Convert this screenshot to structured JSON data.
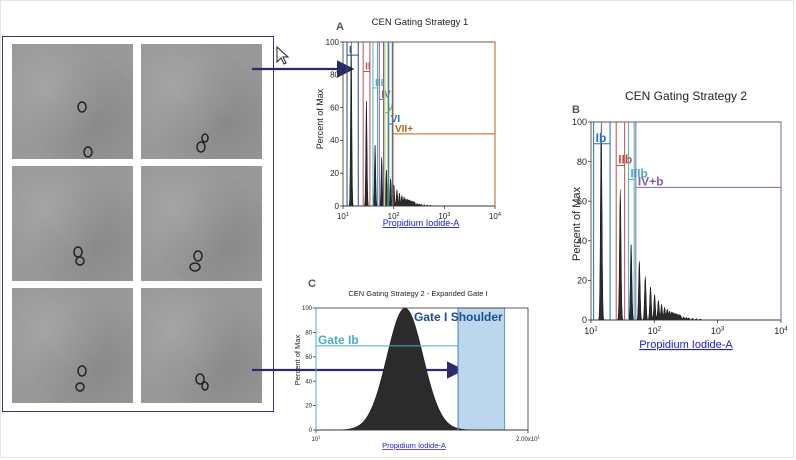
{
  "colors": {
    "gate1": "#1f4e8c",
    "gate2": "#c0504d",
    "gate3": "#4bacc6",
    "gate4": "#8064a2",
    "gate5": "#9bbb59",
    "gate6": "#1f6fbf",
    "gate7": "#b8651b",
    "arrow": "#2b2b6b",
    "link": "#1a1acc",
    "shoulder_fill": "#bcd6ee"
  },
  "chart_data": [
    {
      "id": "A",
      "type": "histogram",
      "panel_label": "A",
      "title": "CEN Gating Strategy 1",
      "xlabel": "Propidium Iodide-A",
      "ylabel": "Percent of Max",
      "xscale": "log",
      "xlim": [
        10,
        10000
      ],
      "ylim": [
        0,
        100
      ],
      "y_ticks": [
        0,
        20,
        40,
        60,
        80,
        100
      ],
      "x_ticks": [
        {
          "value": 10,
          "base": "10",
          "exp": "1"
        },
        {
          "value": 100,
          "base": "10",
          "exp": "2"
        },
        {
          "value": 1000,
          "base": "10",
          "exp": "3"
        },
        {
          "value": 10000,
          "base": "10",
          "exp": "4"
        }
      ],
      "peaks": [
        {
          "x": 14.5,
          "y": 100
        },
        {
          "x": 29,
          "y": 64
        },
        {
          "x": 43,
          "y": 38
        },
        {
          "x": 58,
          "y": 30
        },
        {
          "x": 72,
          "y": 22
        },
        {
          "x": 87,
          "y": 17
        },
        {
          "x": 101,
          "y": 13
        },
        {
          "x": 116,
          "y": 10
        },
        {
          "x": 130,
          "y": 8
        },
        {
          "x": 145,
          "y": 6.5
        },
        {
          "x": 160,
          "y": 5.5
        },
        {
          "x": 174,
          "y": 4.5
        },
        {
          "x": 189,
          "y": 4
        },
        {
          "x": 203,
          "y": 3.5
        },
        {
          "x": 218,
          "y": 3
        },
        {
          "x": 232,
          "y": 2.5
        },
        {
          "x": 247,
          "y": 2.2
        },
        {
          "x": 261,
          "y": 2
        },
        {
          "x": 290,
          "y": 1.6
        },
        {
          "x": 320,
          "y": 1.3
        },
        {
          "x": 350,
          "y": 1.1
        },
        {
          "x": 400,
          "y": 0.9
        },
        {
          "x": 460,
          "y": 0.7
        },
        {
          "x": 530,
          "y": 0.5
        }
      ],
      "peak_width_log": 0.012,
      "gates": [
        {
          "label": "I",
          "x1": 12,
          "x2": 20,
          "y": 92,
          "color_key": "gate1"
        },
        {
          "label": "II",
          "x1": 25,
          "x2": 34,
          "y": 82,
          "color_key": "gate2"
        },
        {
          "label": "III",
          "x1": 39,
          "x2": 48,
          "y": 72,
          "color_key": "gate3"
        },
        {
          "label": "IV",
          "x1": 52,
          "x2": 63,
          "y": 65,
          "color_key": "gate4"
        },
        {
          "label": "V",
          "x1": 67,
          "x2": 77,
          "y": 57,
          "color_key": "gate5"
        },
        {
          "label": "VI",
          "x1": 80,
          "x2": 94,
          "y": 50,
          "color_key": "gate6"
        },
        {
          "label": "VII+",
          "x1": 97,
          "x2": 10000,
          "y": 44,
          "color_key": "gate7"
        }
      ]
    },
    {
      "id": "B",
      "type": "histogram",
      "panel_label": "B",
      "title": "CEN Gating Strategy 2",
      "xlabel": "Propidium Iodide-A",
      "ylabel": "Percent of Max",
      "xscale": "log",
      "xlim": [
        10,
        10000
      ],
      "ylim": [
        0,
        100
      ],
      "y_ticks": [
        0,
        20,
        40,
        60,
        80,
        100
      ],
      "x_ticks": [
        {
          "value": 10,
          "base": "10",
          "exp": "1"
        },
        {
          "value": 100,
          "base": "10",
          "exp": "2"
        },
        {
          "value": 1000,
          "base": "10",
          "exp": "3"
        },
        {
          "value": 10000,
          "base": "10",
          "exp": "4"
        }
      ],
      "peaks": [
        {
          "x": 14.5,
          "y": 100
        },
        {
          "x": 29,
          "y": 66
        },
        {
          "x": 43,
          "y": 39
        },
        {
          "x": 58,
          "y": 30
        },
        {
          "x": 72,
          "y": 22
        },
        {
          "x": 87,
          "y": 17
        },
        {
          "x": 101,
          "y": 13
        },
        {
          "x": 116,
          "y": 10
        },
        {
          "x": 130,
          "y": 8
        },
        {
          "x": 145,
          "y": 6.5
        },
        {
          "x": 160,
          "y": 5.5
        },
        {
          "x": 174,
          "y": 4.5
        },
        {
          "x": 189,
          "y": 4
        },
        {
          "x": 203,
          "y": 3.5
        },
        {
          "x": 218,
          "y": 3
        },
        {
          "x": 232,
          "y": 2.5
        },
        {
          "x": 247,
          "y": 2.2
        },
        {
          "x": 261,
          "y": 2
        },
        {
          "x": 290,
          "y": 1.6
        },
        {
          "x": 320,
          "y": 1.3
        },
        {
          "x": 350,
          "y": 1.1
        },
        {
          "x": 400,
          "y": 0.9
        },
        {
          "x": 460,
          "y": 0.7
        },
        {
          "x": 530,
          "y": 0.5
        }
      ],
      "peak_width_log": 0.012,
      "gates": [
        {
          "label": "Ib",
          "x1": 11,
          "x2": 20,
          "y": 89,
          "color_key": "gate6"
        },
        {
          "label": "IIb",
          "x1": 25,
          "x2": 34,
          "y": 78,
          "color_key": "gate2"
        },
        {
          "label": "IIIb",
          "x1": 39,
          "x2": 48,
          "y": 71,
          "color_key": "gate3"
        },
        {
          "label": "IV+b",
          "x1": 51,
          "x2": 10000,
          "y": 67,
          "color_key": "gate4"
        }
      ]
    },
    {
      "id": "C",
      "type": "histogram",
      "panel_label": "C",
      "title": "CEN Gating Strategy 2 - Expanded Gate I",
      "xlabel": "Propidium Iodide-A",
      "ylabel": "Percent of Max",
      "xscale": "linear",
      "xlim": [
        10,
        20
      ],
      "ylim": [
        0,
        100
      ],
      "y_ticks": [
        0,
        20,
        40,
        60,
        80,
        100
      ],
      "x_ticks": [
        {
          "value": 10,
          "base": "10",
          "exp": "1"
        },
        {
          "value": 20,
          "base": "2.00x10",
          "exp": "1"
        }
      ],
      "peak_center": 14.2,
      "peak_sigma": 0.85,
      "gates": [
        {
          "label": "Gate Ib",
          "x1": 10,
          "x2": 16.7,
          "y": 69,
          "color_key": "gate3"
        },
        {
          "label": "Gate I Shoulder",
          "x1": 16.7,
          "x2": 18.9,
          "y": 100,
          "color_key": "gate1",
          "shaded": true
        }
      ]
    }
  ]
}
